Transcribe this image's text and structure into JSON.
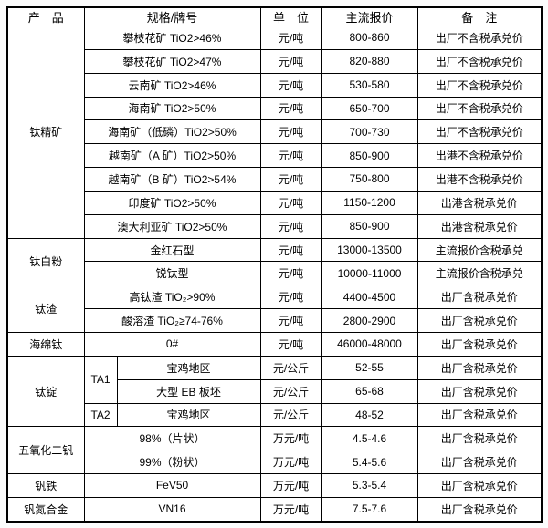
{
  "colors": {
    "border": "#000000",
    "table_background": "#ffffff",
    "page_background": "#fcfcfc",
    "text": "#000000"
  },
  "table": {
    "headers": {
      "product": "产　品",
      "spec": "规格/牌号",
      "unit": "单　位",
      "price": "主流报价",
      "note": "备　注"
    },
    "products": [
      {
        "label": "钛精矿"
      },
      {
        "label": "钛白粉"
      },
      {
        "label": "钛渣"
      },
      {
        "label": "海绵钛"
      },
      {
        "label": "钛锭"
      },
      {
        "label": "五氧化二钒"
      },
      {
        "label": "钒铁"
      },
      {
        "label": "钒氮合金"
      }
    ],
    "ta_grades": [
      {
        "label": "TA1"
      },
      {
        "label": "TA2"
      }
    ],
    "rows": [
      {
        "spec": "攀枝花矿 TiO2>46%",
        "unit": "元/吨",
        "price": "800-860",
        "note": "出厂不含税承兑价"
      },
      {
        "spec": "攀枝花矿 TiO2>47%",
        "unit": "元/吨",
        "price": "820-880",
        "note": "出厂不含税承兑价"
      },
      {
        "spec": "云南矿 TiO2>46%",
        "unit": "元/吨",
        "price": "530-580",
        "note": "出厂不含税承兑价"
      },
      {
        "spec": "海南矿 TiO2>50%",
        "unit": "元/吨",
        "price": "650-700",
        "note": "出厂不含税承兑价"
      },
      {
        "spec": "海南矿（低磷）TiO2>50%",
        "unit": "元/吨",
        "price": "700-730",
        "note": "出厂不含税承兑价"
      },
      {
        "spec": "越南矿（A 矿）TiO2>50%",
        "unit": "元/吨",
        "price": "850-900",
        "note": "出港不含税承兑价"
      },
      {
        "spec": "越南矿（B 矿）TiO2>54%",
        "unit": "元/吨",
        "price": "750-800",
        "note": "出港不含税承兑价"
      },
      {
        "spec": "印度矿 TiO2>50%",
        "unit": "元/吨",
        "price": "1150-1200",
        "note": "出港含税承兑价"
      },
      {
        "spec": "澳大利亚矿 TiO2>50%",
        "unit": "元/吨",
        "price": "850-900",
        "note": "出港含税承兑价"
      },
      {
        "spec": "金红石型",
        "unit": "元/吨",
        "price": "13000-13500",
        "note": "主流报价含税承兑"
      },
      {
        "spec": "锐钛型",
        "unit": "元/吨",
        "price": "10000-11000",
        "note": "主流报价含税承兑"
      },
      {
        "spec": "高钛渣 TiO₂>90%",
        "unit": "元/吨",
        "price": "4400-4500",
        "note": "出厂含税承兑价"
      },
      {
        "spec": "酸溶渣 TiO₂≥74-76%",
        "unit": "元/吨",
        "price": "2800-2900",
        "note": "出厂含税承兑价"
      },
      {
        "spec": "0#",
        "unit": "元/吨",
        "price": "46000-48000",
        "note": "出厂含税承兑价"
      },
      {
        "spec": "宝鸡地区",
        "unit": "元/公斤",
        "price": "52-55",
        "note": "出厂含税承兑价"
      },
      {
        "spec": "大型 EB 板坯",
        "unit": "元/公斤",
        "price": "65-68",
        "note": "出厂含税承兑价"
      },
      {
        "spec": "宝鸡地区",
        "unit": "元/公斤",
        "price": "48-52",
        "note": "出厂含税承兑价"
      },
      {
        "spec": "98%（片状）",
        "unit": "万元/吨",
        "price": "4.5-4.6",
        "note": "出厂含税承兑价"
      },
      {
        "spec": "99%（粉状）",
        "unit": "万元/吨",
        "price": "5.4-5.6",
        "note": "出厂含税承兑价"
      },
      {
        "spec": "FeV50",
        "unit": "万元/吨",
        "price": "5.3-5.4",
        "note": "出厂含税承兑价"
      },
      {
        "spec": "VN16",
        "unit": "万元/吨",
        "price": "7.5-7.6",
        "note": "出厂含税承兑价"
      }
    ]
  }
}
